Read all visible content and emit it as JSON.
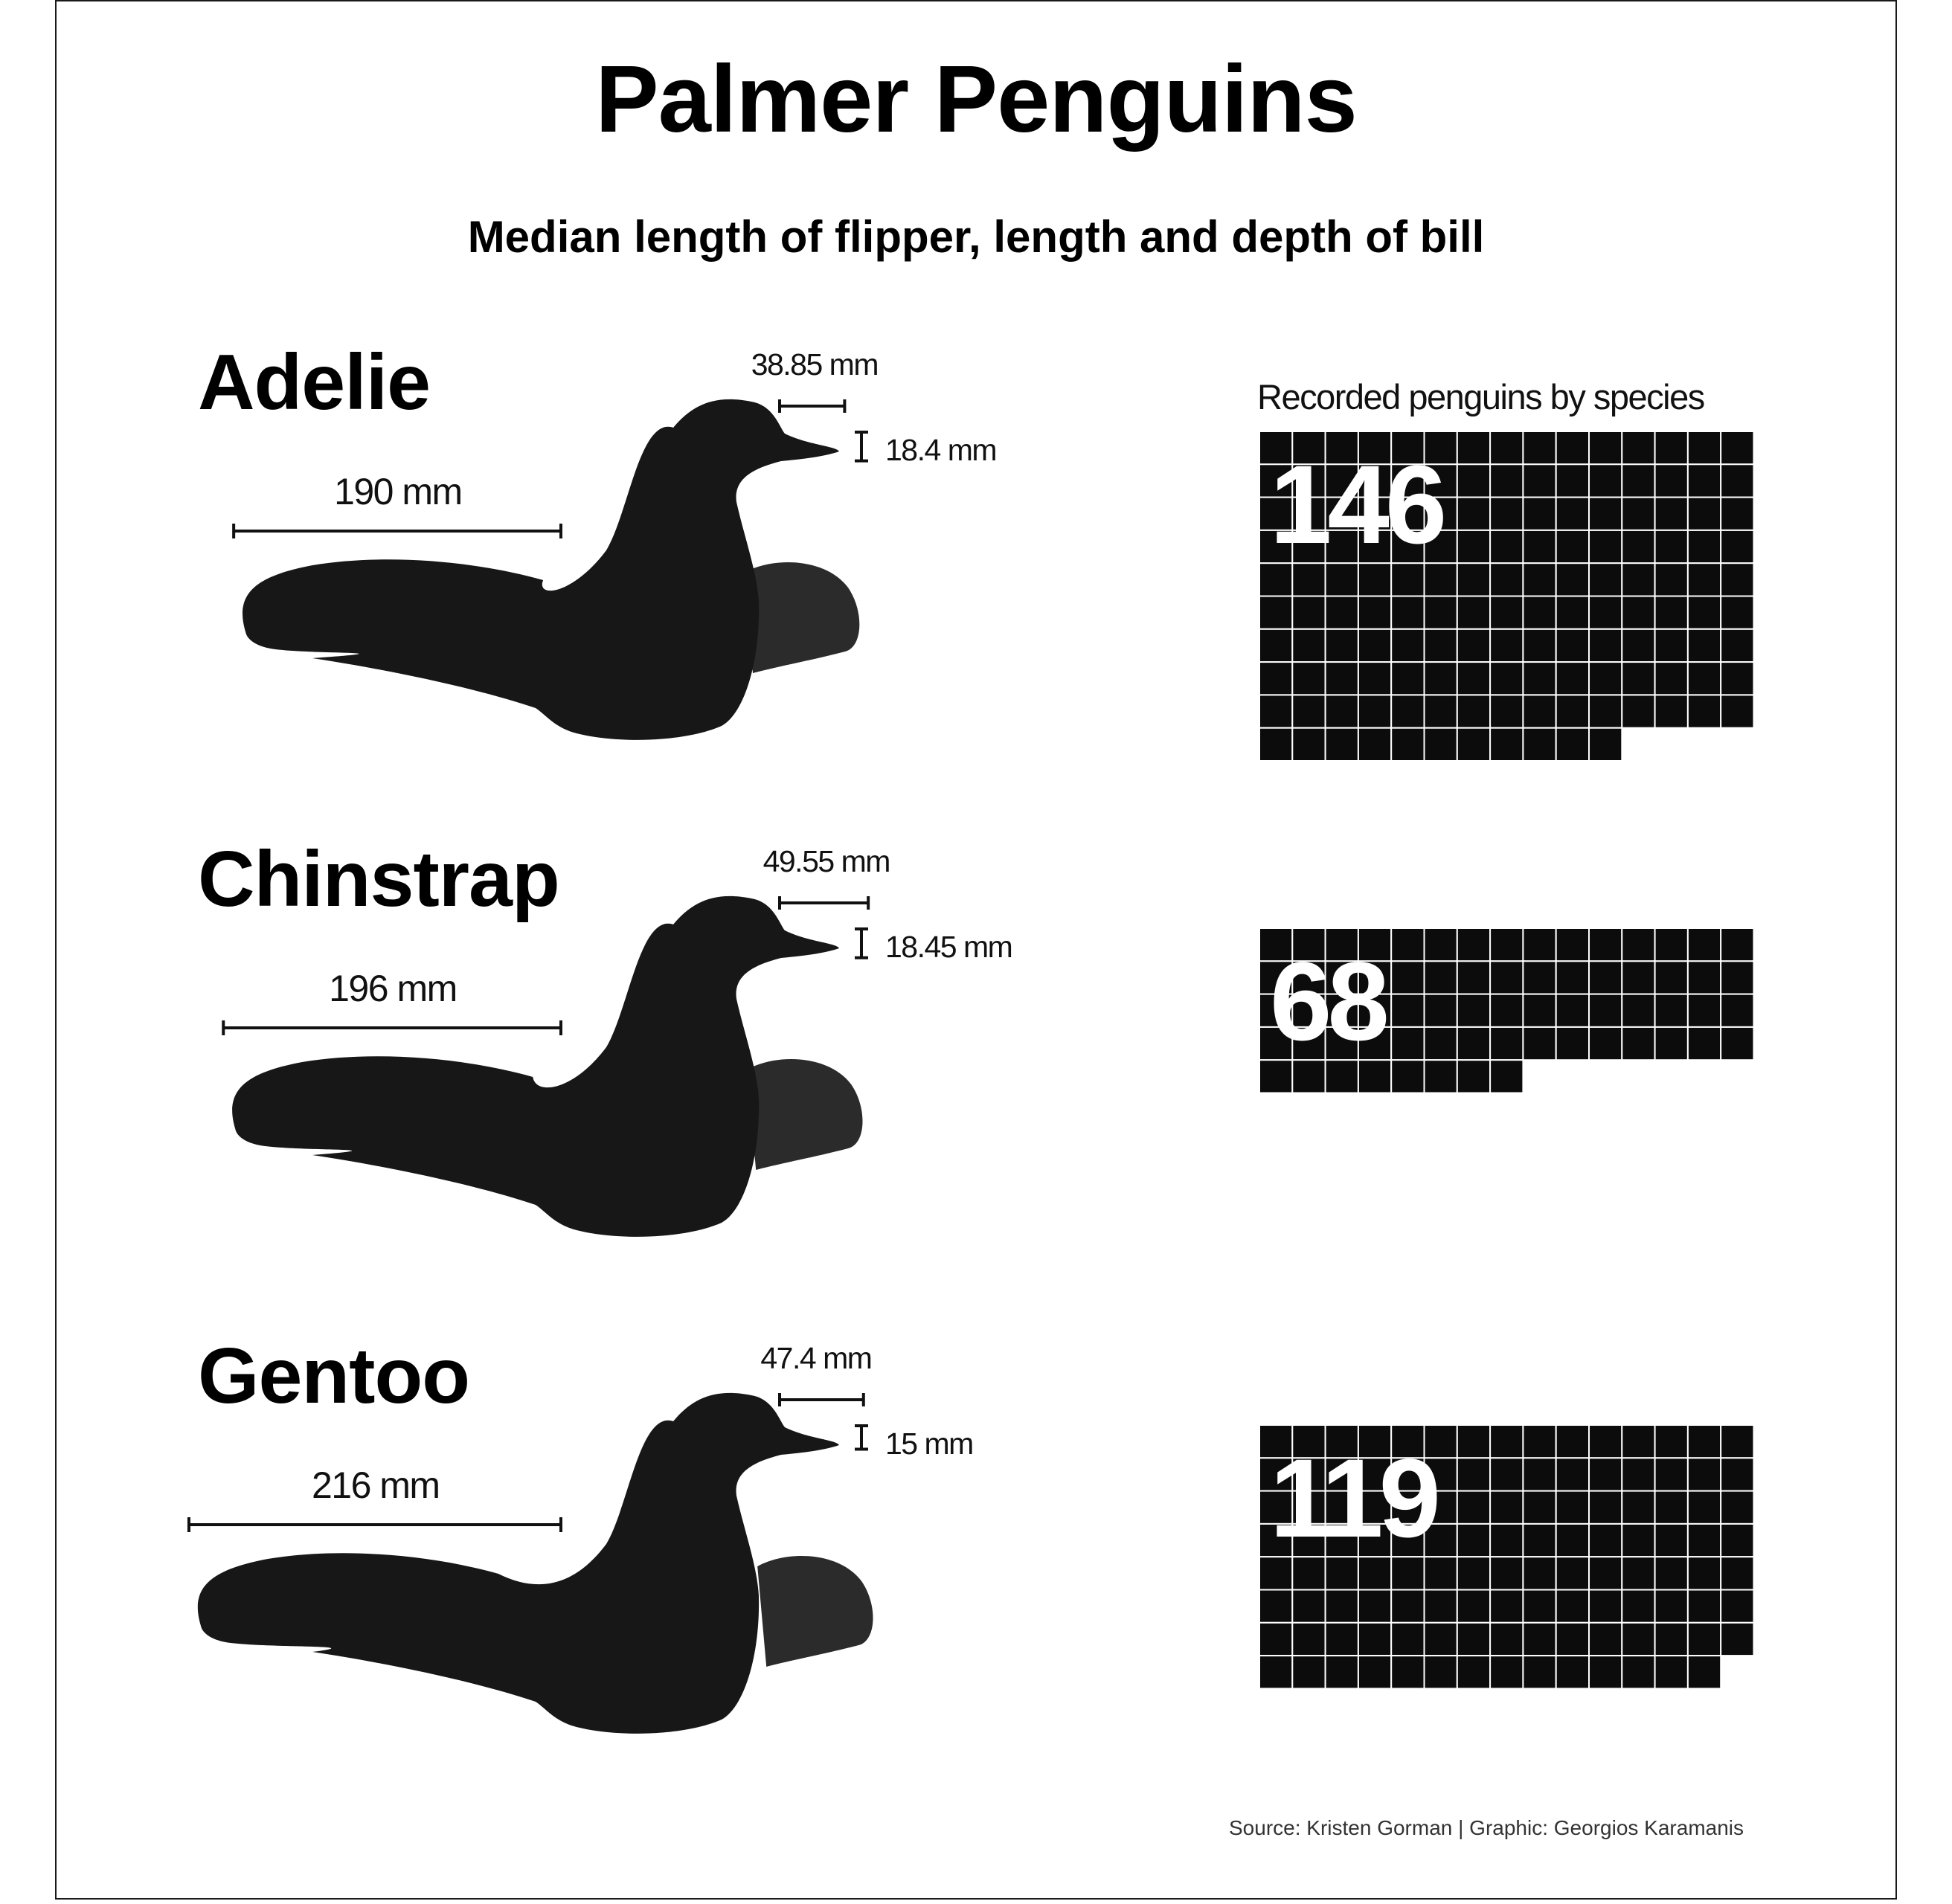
{
  "title": "Palmer Penguins",
  "subtitle": "Median length of flipper, length and depth of bill",
  "waffle_heading": "Recorded penguins by species",
  "source": "Source: Kristen Gorman | Graphic: Georgios Karamanis",
  "colors": {
    "body": "#171717",
    "flipper": "#2b2b2b",
    "waffle_cell": "#0c0c0c",
    "waffle_grid": "#ffffff"
  },
  "chart_data": {
    "type": "waffle",
    "title": "Palmer Penguins",
    "subtitle": "Median length of flipper, length and depth of bill",
    "waffle_columns": 15,
    "species": [
      {
        "name": "Adelie",
        "count": 146,
        "flipper_mm": 190,
        "bill_length_mm": 38.85,
        "bill_depth_mm": 18.4,
        "flipper_label": "190 mm",
        "bill_length_label": "38.85 mm",
        "bill_depth_label": "18.4 mm"
      },
      {
        "name": "Chinstrap",
        "count": 68,
        "flipper_mm": 196,
        "bill_length_mm": 49.55,
        "bill_depth_mm": 18.45,
        "flipper_label": "196 mm",
        "bill_length_label": "49.55 mm",
        "bill_depth_label": "18.45 mm"
      },
      {
        "name": "Gentoo",
        "count": 119,
        "flipper_mm": 216,
        "bill_length_mm": 47.4,
        "bill_depth_mm": 15,
        "flipper_label": "216 mm",
        "bill_length_label": "47.4 mm",
        "bill_depth_label": "15 mm"
      }
    ]
  }
}
